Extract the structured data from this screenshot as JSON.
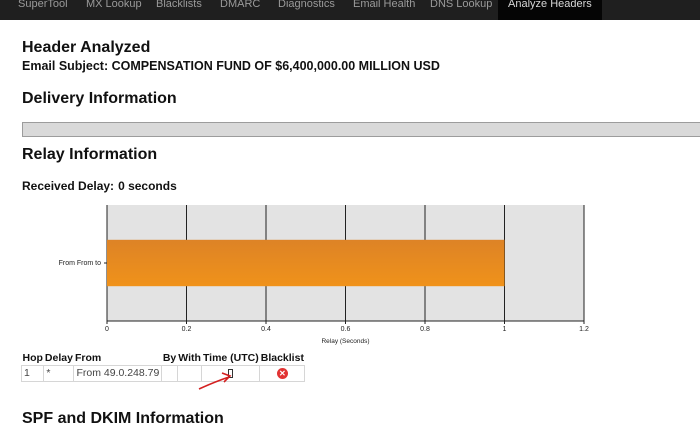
{
  "nav": {
    "items": [
      "SuperTool",
      "MX Lookup",
      "Blacklists",
      "DMARC",
      "Diagnostics",
      "Email Health",
      "DNS Lookup",
      "Analyze Headers"
    ],
    "active": "Analyze Headers"
  },
  "header": {
    "title": "Header Analyzed",
    "subject": "Email Subject: COMPENSATION FUND OF $6,400,000.00 MILLION USD"
  },
  "sections": {
    "delivery": "Delivery Information",
    "relay": "Relay Information",
    "spf": "SPF and DKIM Information"
  },
  "received_delay": {
    "label": "Received Delay:",
    "value": "0 seconds"
  },
  "chart_data": {
    "type": "bar",
    "orientation": "horizontal",
    "categories": [
      "From From to"
    ],
    "values": [
      1
    ],
    "xlabel": "Relay (Seconds)",
    "ylabel": "",
    "xlim": [
      0,
      1.2
    ],
    "xticks": [
      "0",
      "0.2",
      "0.4",
      "0.6",
      "0.8",
      "1",
      "1.2"
    ],
    "grid": true,
    "bar_color": "#f0921a"
  },
  "table": {
    "headers": [
      "Hop",
      "Delay",
      "From",
      "By",
      "With",
      "Time (UTC)",
      "Blacklist"
    ],
    "rows": [
      {
        "hop": "1",
        "delay": "*",
        "from": "From 49.0.248.79",
        "by": "",
        "with": "",
        "time": "[]",
        "blacklist": "blacklisted-icon"
      }
    ]
  },
  "colors": {
    "nav_bg": "#1f1f1f",
    "accent_bar": "#f0921a",
    "blacklist_icon": "#e23333",
    "annotation_arrow": "#d42020"
  }
}
